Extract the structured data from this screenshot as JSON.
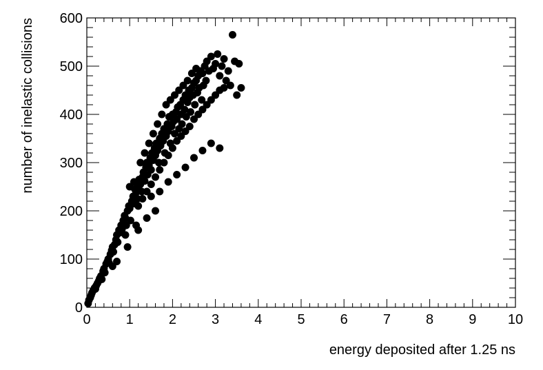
{
  "chart_data": {
    "type": "scatter",
    "title": "",
    "xlabel": "energy deposited after 1.25 ns",
    "ylabel": "number of inelastic collisions",
    "xlim": [
      0,
      10
    ],
    "ylim": [
      0,
      600
    ],
    "x_ticks": [
      0,
      1,
      2,
      3,
      4,
      5,
      6,
      7,
      8,
      9,
      10
    ],
    "y_ticks": [
      0,
      100,
      200,
      300,
      400,
      500,
      600
    ],
    "x_tick_labels": [
      "0",
      "1",
      "2",
      "3",
      "4",
      "5",
      "6",
      "7",
      "8",
      "9",
      "10"
    ],
    "y_tick_labels": [
      "0",
      "100",
      "200",
      "300",
      "400",
      "500",
      "600"
    ],
    "grid": false,
    "marker_color": "#000000",
    "series": [
      {
        "points": [
          [
            0.03,
            8
          ],
          [
            0.05,
            15
          ],
          [
            0.08,
            20
          ],
          [
            0.1,
            25
          ],
          [
            0.12,
            30
          ],
          [
            0.15,
            35
          ],
          [
            0.18,
            40
          ],
          [
            0.2,
            38
          ],
          [
            0.22,
            45
          ],
          [
            0.25,
            50
          ],
          [
            0.28,
            55
          ],
          [
            0.3,
            60
          ],
          [
            0.33,
            65
          ],
          [
            0.35,
            58
          ],
          [
            0.38,
            75
          ],
          [
            0.4,
            80
          ],
          [
            0.42,
            72
          ],
          [
            0.45,
            90
          ],
          [
            0.48,
            95
          ],
          [
            0.5,
            100
          ],
          [
            0.52,
            92
          ],
          [
            0.55,
            110
          ],
          [
            0.58,
            118
          ],
          [
            0.6,
            125
          ],
          [
            0.62,
            115
          ],
          [
            0.65,
            130
          ],
          [
            0.68,
            140
          ],
          [
            0.7,
            150
          ],
          [
            0.72,
            135
          ],
          [
            0.75,
            160
          ],
          [
            0.78,
            155
          ],
          [
            0.8,
            170
          ],
          [
            0.82,
            162
          ],
          [
            0.85,
            180
          ],
          [
            0.88,
            190
          ],
          [
            0.9,
            185
          ],
          [
            0.92,
            170
          ],
          [
            0.95,
            200
          ],
          [
            0.98,
            210
          ],
          [
            1.0,
            205
          ],
          [
            1.02,
            180
          ],
          [
            1.05,
            220
          ],
          [
            1.08,
            230
          ],
          [
            1.1,
            215
          ],
          [
            1.12,
            245
          ],
          [
            1.15,
            238
          ],
          [
            1.18,
            225
          ],
          [
            1.2,
            250
          ],
          [
            1.22,
            265
          ],
          [
            1.25,
            255
          ],
          [
            1.28,
            240
          ],
          [
            1.3,
            270
          ],
          [
            1.32,
            280
          ],
          [
            1.35,
            262
          ],
          [
            1.38,
            290
          ],
          [
            1.4,
            300
          ],
          [
            1.42,
            275
          ],
          [
            1.45,
            295
          ],
          [
            1.48,
            310
          ],
          [
            1.5,
            285
          ],
          [
            1.52,
            320
          ],
          [
            1.55,
            305
          ],
          [
            1.58,
            330
          ],
          [
            1.6,
            315
          ],
          [
            1.62,
            340
          ],
          [
            1.65,
            325
          ],
          [
            1.68,
            300
          ],
          [
            1.7,
            350
          ],
          [
            1.72,
            335
          ],
          [
            1.75,
            360
          ],
          [
            1.78,
            345
          ],
          [
            1.8,
            370
          ],
          [
            1.82,
            320
          ],
          [
            1.85,
            355
          ],
          [
            1.88,
            380
          ],
          [
            1.9,
            365
          ],
          [
            1.92,
            395
          ],
          [
            1.95,
            340
          ],
          [
            1.98,
            375
          ],
          [
            2.0,
            400
          ],
          [
            2.02,
            385
          ],
          [
            2.05,
            360
          ],
          [
            2.08,
            405
          ],
          [
            2.1,
            390
          ],
          [
            2.12,
            415
          ],
          [
            2.15,
            370
          ],
          [
            2.18,
            420
          ],
          [
            2.2,
            400
          ],
          [
            2.22,
            380
          ],
          [
            2.25,
            430
          ],
          [
            2.28,
            410
          ],
          [
            2.3,
            440
          ],
          [
            2.32,
            395
          ],
          [
            2.35,
            425
          ],
          [
            2.38,
            450
          ],
          [
            2.4,
            435
          ],
          [
            2.42,
            405
          ],
          [
            2.45,
            455
          ],
          [
            2.48,
            440
          ],
          [
            2.5,
            465
          ],
          [
            2.52,
            420
          ],
          [
            2.55,
            470
          ],
          [
            2.58,
            445
          ],
          [
            2.6,
            480
          ],
          [
            2.62,
            455
          ],
          [
            2.65,
            490
          ],
          [
            2.68,
            430
          ],
          [
            2.7,
            485
          ],
          [
            2.72,
            460
          ],
          [
            2.75,
            500
          ],
          [
            2.78,
            470
          ],
          [
            2.8,
            510
          ],
          [
            2.85,
            490
          ],
          [
            2.9,
            520
          ],
          [
            2.95,
            495
          ],
          [
            3.0,
            505
          ],
          [
            3.05,
            525
          ],
          [
            3.1,
            480
          ],
          [
            3.15,
            500
          ],
          [
            3.2,
            515
          ],
          [
            3.25,
            470
          ],
          [
            3.3,
            490
          ],
          [
            3.35,
            460
          ],
          [
            3.4,
            565
          ],
          [
            3.45,
            510
          ],
          [
            3.5,
            440
          ],
          [
            3.55,
            505
          ],
          [
            3.6,
            455
          ],
          [
            1.0,
            250
          ],
          [
            1.1,
            260
          ],
          [
            1.25,
            300
          ],
          [
            1.35,
            320
          ],
          [
            1.45,
            340
          ],
          [
            1.55,
            360
          ],
          [
            1.65,
            380
          ],
          [
            1.75,
            400
          ],
          [
            1.85,
            420
          ],
          [
            1.95,
            430
          ],
          [
            2.05,
            440
          ],
          [
            2.15,
            450
          ],
          [
            2.25,
            460
          ],
          [
            2.35,
            470
          ],
          [
            2.45,
            485
          ],
          [
            2.55,
            495
          ],
          [
            1.2,
            210
          ],
          [
            1.3,
            225
          ],
          [
            1.4,
            240
          ],
          [
            1.5,
            255
          ],
          [
            1.6,
            270
          ],
          [
            1.7,
            285
          ],
          [
            1.8,
            300
          ],
          [
            1.9,
            315
          ],
          [
            2.0,
            330
          ],
          [
            2.1,
            345
          ],
          [
            2.2,
            355
          ],
          [
            2.3,
            365
          ],
          [
            2.4,
            375
          ],
          [
            2.5,
            390
          ],
          [
            2.6,
            400
          ],
          [
            2.7,
            410
          ],
          [
            2.8,
            420
          ],
          [
            2.9,
            430
          ],
          [
            3.0,
            440
          ],
          [
            3.1,
            450
          ],
          [
            3.2,
            455
          ],
          [
            1.5,
            230
          ],
          [
            1.7,
            240
          ],
          [
            1.9,
            260
          ],
          [
            2.1,
            275
          ],
          [
            2.3,
            290
          ],
          [
            2.5,
            310
          ],
          [
            2.7,
            325
          ],
          [
            2.9,
            340
          ],
          [
            3.1,
            330
          ],
          [
            1.2,
            160
          ],
          [
            1.4,
            185
          ],
          [
            1.6,
            200
          ],
          [
            0.9,
            150
          ],
          [
            0.95,
            125
          ],
          [
            1.15,
            170
          ],
          [
            0.6,
            85
          ],
          [
            0.7,
            95
          ]
        ]
      }
    ]
  }
}
